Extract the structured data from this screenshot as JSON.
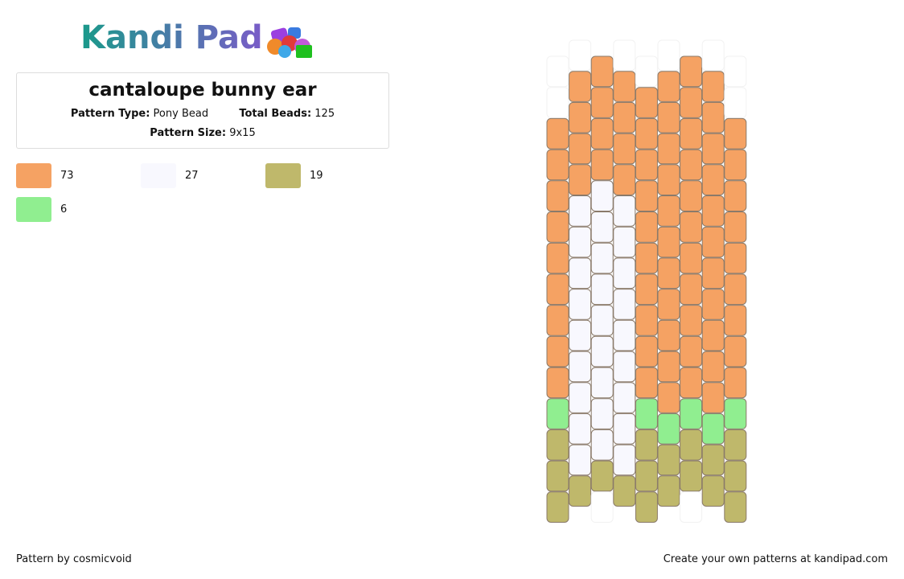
{
  "logo": "Kandi Pad",
  "title": "cantaloupe bunny ear",
  "info": {
    "pattern_type_label": "Pattern Type:",
    "pattern_type": "Pony Bead",
    "total_beads_label": "Total Beads:",
    "total_beads": 125,
    "pattern_size_label": "Pattern Size:",
    "pattern_size": "9x15"
  },
  "legend": [
    {
      "color": "#f5a263",
      "count": 73
    },
    {
      "color": "#f8f8fe",
      "count": 27
    },
    {
      "color": "#bfb86b",
      "count": 19
    },
    {
      "color": "#90ee90",
      "count": 6
    }
  ],
  "footer": {
    "author": "Pattern by cosmicvoid",
    "promo": "Create your own patterns at kandipad.com"
  }
}
